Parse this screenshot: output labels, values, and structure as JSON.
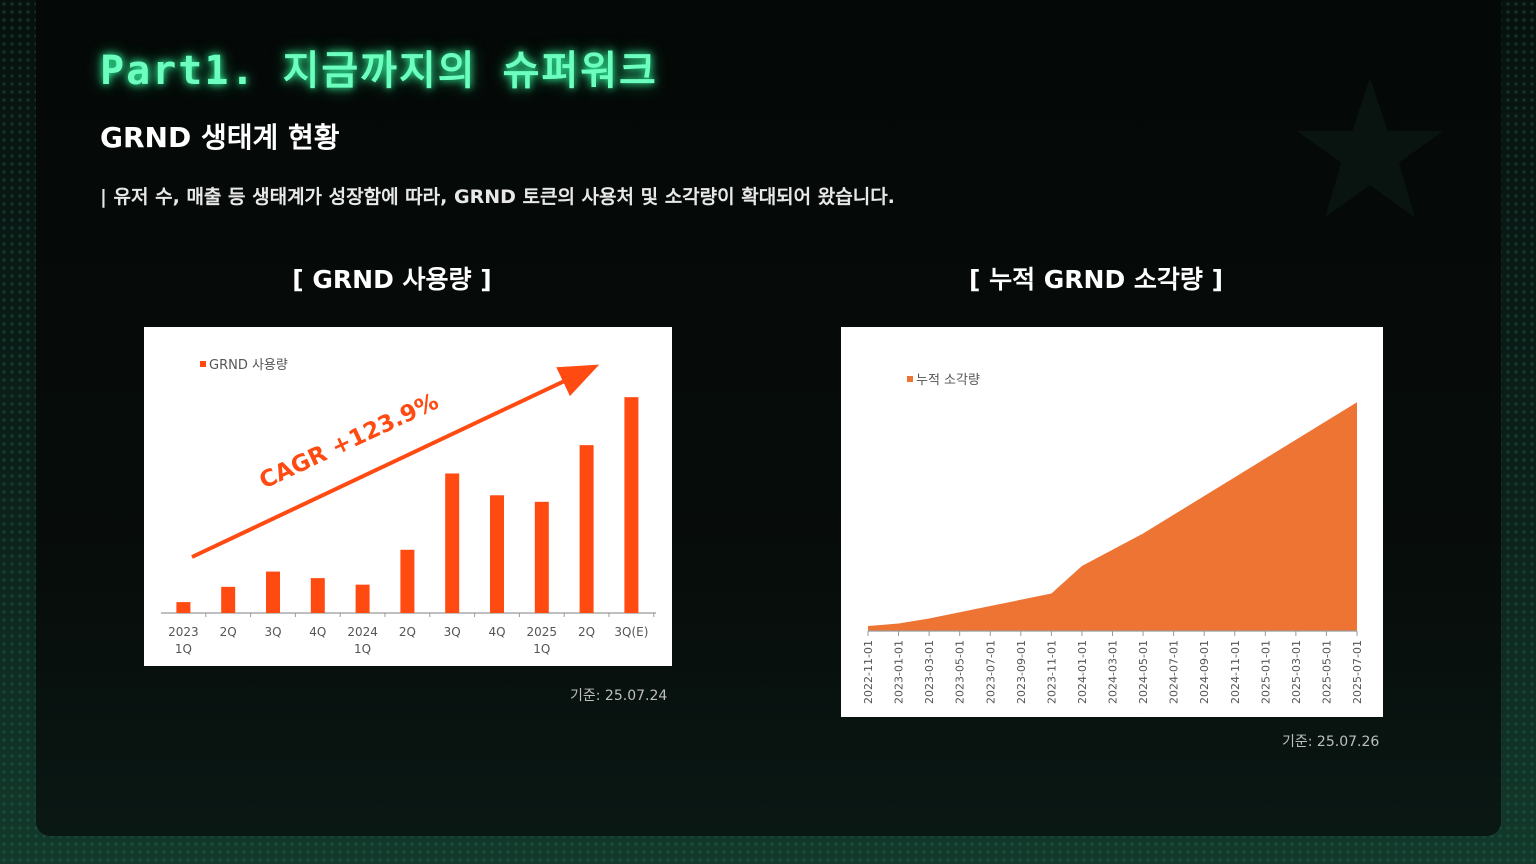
{
  "page": {
    "title": "Part1. 지금까지의 슈퍼워크",
    "subtitle": "GRND 생태계 현황",
    "description": "| 유저 수, 매출 등 생태계가 성장함에 따라, GRND 토큰의 사용처 및 소각량이 확대되어 왔습니다."
  },
  "colors": {
    "accent_title": "#6dffc0",
    "bar_color": "#ff4a12",
    "area_color": "#ed7433"
  },
  "left_chart": {
    "heading": "[ GRND 사용량 ]",
    "legend": "GRND 사용량",
    "annotation": "CAGR +123.9%",
    "note": "기준: 25.07.24"
  },
  "right_chart": {
    "heading": "[ 누적 GRND 소각량 ]",
    "legend": "누적 소각량",
    "note": "기준: 25.07.26"
  },
  "chart_data": [
    {
      "type": "bar",
      "title": "[ GRND 사용량 ]",
      "series": [
        {
          "name": "GRND 사용량",
          "values": [
            5,
            12,
            19,
            16,
            13,
            29,
            64,
            54,
            51,
            77,
            99
          ]
        }
      ],
      "categories": [
        [
          "2023",
          "1Q"
        ],
        [
          "2Q"
        ],
        [
          "3Q"
        ],
        [
          "4Q"
        ],
        [
          "2024",
          "1Q"
        ],
        [
          "2Q"
        ],
        [
          "3Q"
        ],
        [
          "4Q"
        ],
        [
          "2025",
          "1Q"
        ],
        [
          "2Q"
        ],
        [
          "3Q(E)"
        ]
      ],
      "ylim": [
        0,
        100
      ],
      "grid": false,
      "legend": "top-left",
      "annotations": [
        "CAGR +123.9%"
      ]
    },
    {
      "type": "area",
      "title": "[ 누적 GRND 소각량 ]",
      "x": [
        "2022-11-01",
        "2023-01-01",
        "2023-03-01",
        "2023-05-01",
        "2023-07-01",
        "2023-09-01",
        "2023-11-01",
        "2024-01-01",
        "2024-03-01",
        "2024-05-01",
        "2024-07-01",
        "2024-09-01",
        "2024-11-01",
        "2025-01-01",
        "2025-03-01",
        "2025-05-01",
        "2025-07-01"
      ],
      "series": [
        {
          "name": "누적 소각량",
          "values": [
            4,
            6,
            10,
            15,
            20,
            25,
            30,
            52,
            65,
            78,
            93,
            108,
            123,
            138,
            153,
            168,
            183
          ]
        }
      ],
      "ylim": [
        0,
        200
      ],
      "grid": false,
      "legend": "top-left"
    }
  ]
}
